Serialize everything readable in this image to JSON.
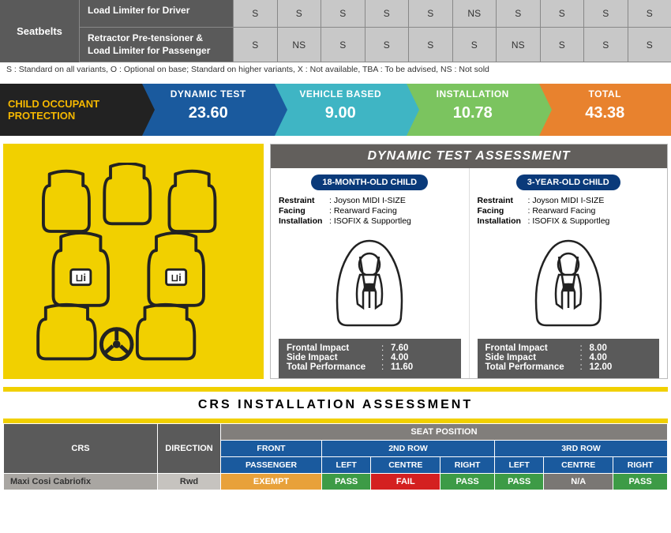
{
  "seatbelts": {
    "heading": "Seatbelts",
    "rows": [
      {
        "label": "Load Limiter for Driver",
        "cells": [
          "S",
          "S",
          "S",
          "S",
          "S",
          "NS",
          "S",
          "S",
          "S",
          "S"
        ]
      },
      {
        "label": "Retractor Pre-tensioner & Load Limiter for Passenger",
        "cells": [
          "S",
          "NS",
          "S",
          "S",
          "S",
          "S",
          "NS",
          "S",
          "S",
          "S"
        ]
      }
    ],
    "legend": "S : Standard on all variants, O : Optional on base; Standard on higher variants, X : Not available, TBA : To be advised, NS : Not sold"
  },
  "cop": {
    "label": "CHILD OCCUPANT PROTECTION",
    "segments": [
      {
        "title": "DYNAMIC TEST",
        "value": "23.60",
        "cls": "seg-blue"
      },
      {
        "title": "VEHICLE BASED",
        "value": "9.00",
        "cls": "seg-cyan"
      },
      {
        "title": "INSTALLATION",
        "value": "10.78",
        "cls": "seg-green"
      },
      {
        "title": "TOTAL",
        "value": "43.38",
        "cls": "seg-orange"
      }
    ]
  },
  "dynamic": {
    "title": "DYNAMIC TEST ASSESSMENT",
    "cols": [
      {
        "pill": "18-MONTH-OLD CHILD",
        "specs": [
          {
            "k": "Restraint",
            "v": ": Joyson MIDI I-SIZE"
          },
          {
            "k": "Facing",
            "v": ": Rearward Facing"
          },
          {
            "k": "Installation",
            "v": ": ISOFIX & Supportleg"
          }
        ],
        "scores": [
          {
            "k": "Frontal Impact",
            "v": "7.60"
          },
          {
            "k": "Side Impact",
            "v": "4.00"
          },
          {
            "k": "Total Performance",
            "v": "11.60"
          }
        ]
      },
      {
        "pill": "3-YEAR-OLD CHILD",
        "specs": [
          {
            "k": "Restraint",
            "v": ": Joyson MIDI I-SIZE"
          },
          {
            "k": "Facing",
            "v": ": Rearward Facing"
          },
          {
            "k": "Installation",
            "v": ": ISOFIX & Supportleg"
          }
        ],
        "scores": [
          {
            "k": "Frontal Impact",
            "v": "8.00"
          },
          {
            "k": "Side Impact",
            "v": "4.00"
          },
          {
            "k": "Total Performance",
            "v": "12.00"
          }
        ]
      }
    ]
  },
  "crs": {
    "title": "CRS INSTALLATION ASSESSMENT",
    "h_crs": "CRS",
    "h_dir": "DIRECTION",
    "h_seat": "SEAT POSITION",
    "groups": [
      {
        "label": "FRONT",
        "sub": [
          "PASSENGER"
        ]
      },
      {
        "label": "2ND ROW",
        "sub": [
          "LEFT",
          "CENTRE",
          "RIGHT"
        ]
      },
      {
        "label": "3RD ROW",
        "sub": [
          "LEFT",
          "CENTRE",
          "RIGHT"
        ]
      }
    ],
    "row": {
      "name": "Maxi Cosi Cabriofix",
      "dir": "Rwd",
      "cells": [
        {
          "txt": "EXEMPT",
          "cls": "c-exempt"
        },
        {
          "txt": "PASS",
          "cls": "c-pass"
        },
        {
          "txt": "FAIL",
          "cls": "c-fail"
        },
        {
          "txt": "PASS",
          "cls": "c-pass"
        },
        {
          "txt": "PASS",
          "cls": "c-pass"
        },
        {
          "txt": "N/A",
          "cls": "c-na"
        },
        {
          "txt": "PASS",
          "cls": "c-pass"
        }
      ]
    }
  }
}
